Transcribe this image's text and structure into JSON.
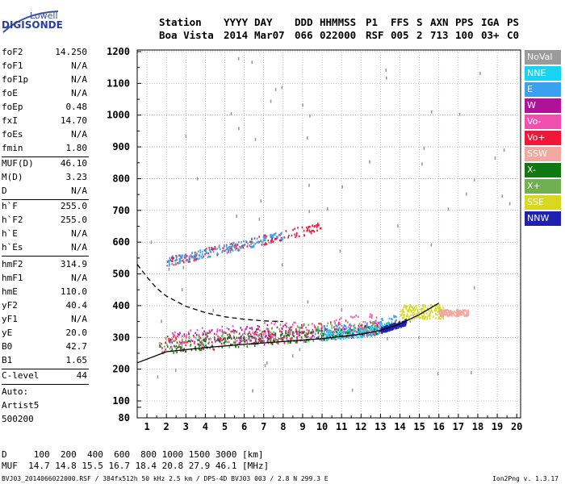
{
  "logo": {
    "top": "Lowell",
    "main": "DIGISONDE"
  },
  "header": {
    "labels": [
      "Station",
      "YYYY",
      "DAY",
      "DDD",
      "HHMMSS",
      "P1",
      "FFS",
      "S",
      "AXN",
      "PPS",
      "IGA",
      "PS"
    ],
    "values": [
      "Boa Vista",
      "2014",
      "Mar07",
      "066",
      "022000",
      "RSF",
      "005",
      "2",
      "713",
      "100",
      "03+",
      "C0"
    ]
  },
  "parameters": [
    {
      "name": "foF2",
      "value": "14.250"
    },
    {
      "name": "foF1",
      "value": "N/A"
    },
    {
      "name": "foF1p",
      "value": "N/A"
    },
    {
      "name": "foE",
      "value": "N/A"
    },
    {
      "name": "foEp",
      "value": "0.48"
    },
    {
      "name": "fxI",
      "value": "14.70"
    },
    {
      "name": "foEs",
      "value": "N/A"
    },
    {
      "name": "fmin",
      "value": "1.80"
    },
    {
      "name": "MUF(D)",
      "value": "46.10"
    },
    {
      "name": "M(D)",
      "value": "3.23"
    },
    {
      "name": "D",
      "value": "N/A"
    },
    {
      "name": "h`F",
      "value": "255.0"
    },
    {
      "name": "h`F2",
      "value": "255.0"
    },
    {
      "name": "h`E",
      "value": "N/A"
    },
    {
      "name": "h`Es",
      "value": "N/A"
    },
    {
      "name": "hmF2",
      "value": "314.9"
    },
    {
      "name": "hmF1",
      "value": "N/A"
    },
    {
      "name": "hmE",
      "value": "110.0"
    },
    {
      "name": "yF2",
      "value": "40.4"
    },
    {
      "name": "yF1",
      "value": "N/A"
    },
    {
      "name": "yE",
      "value": "20.0"
    },
    {
      "name": "B0",
      "value": "42.7"
    },
    {
      "name": "B1",
      "value": "1.65"
    },
    {
      "name": "C-level",
      "value": "44"
    }
  ],
  "auto": {
    "line1": "Auto:",
    "line2": "Artist5",
    "line3": "500200"
  },
  "legend": [
    {
      "label": "NoVal",
      "color": "#9a9a9a"
    },
    {
      "label": "NNE",
      "color": "#19d4f0"
    },
    {
      "label": "E",
      "color": "#3aa0f0"
    },
    {
      "label": "W",
      "color": "#b0109a"
    },
    {
      "label": "Vo-",
      "color": "#f050b0"
    },
    {
      "label": "Vo+",
      "color": "#f01838"
    },
    {
      "label": "SSW",
      "color": "#f0a8a0"
    },
    {
      "label": "X-",
      "color": "#107810"
    },
    {
      "label": "X+",
      "color": "#70b050"
    },
    {
      "label": "SSE",
      "color": "#d8d820"
    },
    {
      "label": "NNW",
      "color": "#2020b0"
    }
  ],
  "bottom": {
    "d_row": "D     100  200  400  600  800 1000 1500 3000 [km]",
    "muf_row": "MUF  14.7 14.8 15.5 16.7 18.4 20.8 27.9 46.1 [MHz]"
  },
  "footer": "BVJ03_2014066022000.RSF / 384fx512h 50 kHz 2.5 km / DPS-4D BVJ03 003 / 2.8 N 299.3 E",
  "version": "Ion2Png v. 1.3.17",
  "chart_data": {
    "type": "scatter",
    "title": "",
    "xlabel": "",
    "ylabel": "",
    "xlim": [
      0.5,
      20.2
    ],
    "ylim": [
      80,
      1200
    ],
    "x_ticks": [
      1,
      2,
      3,
      4,
      5,
      6,
      7,
      8,
      9,
      10,
      11,
      12,
      13,
      14,
      15,
      16,
      17,
      18,
      19,
      20
    ],
    "y_ticks": [
      80,
      100,
      200,
      300,
      400,
      500,
      600,
      700,
      800,
      900,
      1000,
      1100,
      1200
    ],
    "grid": "dotted",
    "legend_position": "right",
    "series": [
      {
        "color": "#b0109a",
        "clusters": [
          {
            "x": [
              2.0,
              8.5
            ],
            "y": [
              320,
              390
            ]
          },
          {
            "x": [
              3.5,
              13.0
            ],
            "y": [
              340,
              380
            ]
          }
        ]
      },
      {
        "color": "#f01838",
        "clusters": [
          {
            "x": [
              1.6,
              14.0
            ],
            "y": [
              255,
              320
            ]
          },
          {
            "x": [
              2.0,
              10.0
            ],
            "y": [
              540,
              660
            ]
          }
        ]
      },
      {
        "color": "#3aa0f0",
        "clusters": [
          {
            "x": [
              9.5,
              13.8
            ],
            "y": [
              330,
              380
            ]
          },
          {
            "x": [
              2.0,
              8.0
            ],
            "y": [
              560,
              610
            ]
          }
        ]
      },
      {
        "color": "#19d4f0",
        "clusters": [
          {
            "x": [
              10.0,
              13.5
            ],
            "y": [
              330,
              360
            ]
          }
        ]
      },
      {
        "color": "#f050b0",
        "clusters": [
          {
            "x": [
              2.0,
              13.0
            ],
            "y": [
              300,
              380
            ]
          }
        ]
      },
      {
        "color": "#70b050",
        "clusters": [
          {
            "x": [
              1.6,
              14.5
            ],
            "y": [
              260,
              320
            ]
          }
        ]
      },
      {
        "color": "#107810",
        "clusters": [
          {
            "x": [
              1.6,
              14.0
            ],
            "y": [
              260,
              300
            ]
          }
        ]
      },
      {
        "color": "#d8d820",
        "clusters": [
          {
            "x": [
              14.0,
              16.2
            ],
            "y": [
              360,
              405
            ]
          }
        ]
      },
      {
        "color": "#f0a8a0",
        "clusters": [
          {
            "x": [
              16.0,
              17.5
            ],
            "y": [
              370,
              390
            ]
          }
        ]
      },
      {
        "color": "#2020b0",
        "clusters": [
          {
            "x": [
              13.0,
              14.3
            ],
            "y": [
              310,
              330
            ]
          }
        ]
      },
      {
        "color": "#9a9a9a",
        "clusters": [
          {
            "x": [
              1.0,
              20.0
            ],
            "y": [
              100,
              1200
            ]
          }
        ]
      }
    ],
    "lines": [
      {
        "style": "solid",
        "color": "#000000",
        "x": [
          0.5,
          2,
          4,
          6,
          8,
          10,
          12,
          13,
          14,
          15,
          16
        ],
        "y": [
          220,
          255,
          268,
          278,
          287,
          296,
          310,
          322,
          342,
          372,
          408
        ]
      },
      {
        "style": "dashed",
        "color": "#000000",
        "x": [
          0.5,
          1,
          1.5,
          2,
          3,
          4,
          5,
          6,
          7,
          8
        ],
        "y": [
          530,
          490,
          455,
          430,
          398,
          378,
          365,
          357,
          352,
          350
        ]
      }
    ]
  }
}
